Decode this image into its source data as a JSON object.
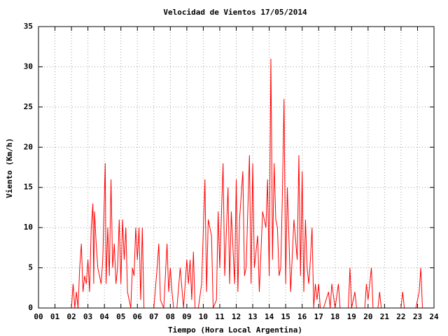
{
  "chart_data": {
    "type": "line",
    "title": "Velocidad de Vientos 17/05/2014",
    "xlabel": "Tiempo (Hora Local Argentina)",
    "ylabel": "Viento (Km/h)",
    "color": "#ff0000",
    "grid": true,
    "xlim": [
      0,
      24
    ],
    "ylim": [
      0,
      35
    ],
    "xticks": [
      {
        "value": 0,
        "label": "00"
      },
      {
        "value": 1,
        "label": "01"
      },
      {
        "value": 2,
        "label": "02"
      },
      {
        "value": 3,
        "label": "03"
      },
      {
        "value": 4,
        "label": "04"
      },
      {
        "value": 5,
        "label": "05"
      },
      {
        "value": 6,
        "label": "06"
      },
      {
        "value": 7,
        "label": "07"
      },
      {
        "value": 8,
        "label": "08"
      },
      {
        "value": 9,
        "label": "09"
      },
      {
        "value": 10,
        "label": "10"
      },
      {
        "value": 11,
        "label": "11"
      },
      {
        "value": 12,
        "label": "12"
      },
      {
        "value": 13,
        "label": "13"
      },
      {
        "value": 14,
        "label": "14"
      },
      {
        "value": 15,
        "label": "15"
      },
      {
        "value": 16,
        "label": "16"
      },
      {
        "value": 17,
        "label": "17"
      },
      {
        "value": 18,
        "label": "18"
      },
      {
        "value": 19,
        "label": "19"
      },
      {
        "value": 20,
        "label": "20"
      },
      {
        "value": 21,
        "label": "21"
      },
      {
        "value": 22,
        "label": "22"
      },
      {
        "value": 23,
        "label": "23"
      },
      {
        "value": 24,
        "label": "24"
      }
    ],
    "yticks": [
      0,
      5,
      10,
      15,
      20,
      25,
      30,
      35
    ],
    "x": [
      2.0,
      2.1,
      2.2,
      2.3,
      2.4,
      2.5,
      2.6,
      2.7,
      2.8,
      2.9,
      3.0,
      3.1,
      3.2,
      3.3,
      3.35,
      3.4,
      3.5,
      3.6,
      3.7,
      3.8,
      3.9,
      4.05,
      4.1,
      4.2,
      4.3,
      4.4,
      4.5,
      4.6,
      4.7,
      4.8,
      4.9,
      5.0,
      5.1,
      5.2,
      5.3,
      5.4,
      5.5,
      5.6,
      5.7,
      5.8,
      5.9,
      6.0,
      6.1,
      6.2,
      6.3,
      6.4,
      6.6,
      6.8,
      7.0,
      7.2,
      7.3,
      7.4,
      7.6,
      7.8,
      7.9,
      8.0,
      8.1,
      8.2,
      8.4,
      8.6,
      8.8,
      9.0,
      9.1,
      9.2,
      9.3,
      9.4,
      9.5,
      9.7,
      9.9,
      10.1,
      10.2,
      10.3,
      10.5,
      10.6,
      10.8,
      10.9,
      11.0,
      11.2,
      11.3,
      11.5,
      11.6,
      11.7,
      11.9,
      12.0,
      12.1,
      12.2,
      12.4,
      12.5,
      12.6,
      12.8,
      12.9,
      13.0,
      13.1,
      13.3,
      13.4,
      13.6,
      13.8,
      13.9,
      14.0,
      14.1,
      14.15,
      14.2,
      14.3,
      14.4,
      14.5,
      14.6,
      14.7,
      14.8,
      14.9,
      15.0,
      15.1,
      15.3,
      15.5,
      15.7,
      15.8,
      15.9,
      16.0,
      16.1,
      16.2,
      16.3,
      16.4,
      16.5,
      16.6,
      16.7,
      16.8,
      16.9,
      17.0,
      17.1,
      17.3,
      17.6,
      17.7,
      17.8,
      18.0,
      18.2,
      18.3,
      18.8,
      18.9,
      19.0,
      19.2,
      19.3,
      19.8,
      19.9,
      20.0,
      20.2,
      20.3,
      20.6,
      20.7,
      20.8,
      22.0,
      22.1,
      22.2,
      22.9,
      23.1,
      23.2,
      23.3
    ],
    "values": [
      0,
      3,
      0,
      2,
      0,
      5,
      8,
      2,
      4,
      3,
      6,
      2,
      10,
      13,
      3,
      12,
      8,
      5,
      4,
      3,
      6,
      18,
      3,
      10,
      4,
      16,
      5,
      8,
      3,
      5,
      11,
      3,
      11,
      6,
      10,
      2,
      1,
      0,
      5,
      4,
      10,
      6,
      10,
      1,
      10,
      0,
      0,
      0,
      0,
      5,
      8,
      1,
      0,
      8,
      2,
      5,
      2,
      0,
      0,
      5,
      0,
      6,
      3,
      6,
      1,
      7,
      0,
      0,
      3,
      16,
      2,
      11,
      9,
      0,
      1,
      12,
      5,
      18,
      4,
      15,
      3,
      12,
      3,
      16,
      2,
      11,
      17,
      4,
      5,
      19,
      3,
      18,
      5,
      9,
      2,
      12,
      10,
      16,
      4,
      31,
      20,
      6,
      18,
      11,
      10,
      4,
      5,
      14,
      26,
      3,
      15,
      2,
      11,
      6,
      19,
      4,
      17,
      2,
      11,
      5,
      3,
      6,
      10,
      0,
      3,
      1,
      3,
      0,
      0,
      2,
      0,
      3,
      0,
      3,
      0,
      0,
      5,
      0,
      2,
      0,
      0,
      3,
      1,
      5,
      0,
      0,
      2,
      0,
      0,
      2,
      0,
      0,
      2,
      5,
      0
    ]
  }
}
